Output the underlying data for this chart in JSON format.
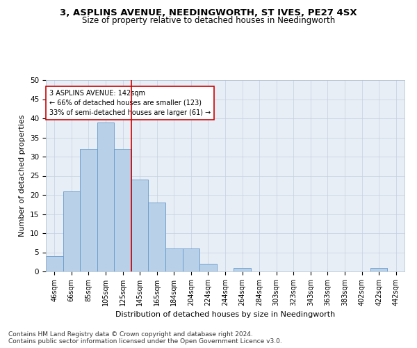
{
  "title": "3, ASPLINS AVENUE, NEEDINGWORTH, ST IVES, PE27 4SX",
  "subtitle": "Size of property relative to detached houses in Needingworth",
  "xlabel": "Distribution of detached houses by size in Needingworth",
  "ylabel": "Number of detached properties",
  "categories": [
    "46sqm",
    "66sqm",
    "85sqm",
    "105sqm",
    "125sqm",
    "145sqm",
    "165sqm",
    "184sqm",
    "204sqm",
    "224sqm",
    "244sqm",
    "264sqm",
    "284sqm",
    "303sqm",
    "323sqm",
    "343sqm",
    "363sqm",
    "383sqm",
    "402sqm",
    "422sqm",
    "442sqm"
  ],
  "values": [
    4,
    21,
    32,
    39,
    32,
    24,
    18,
    6,
    6,
    2,
    0,
    1,
    0,
    0,
    0,
    0,
    0,
    0,
    0,
    1,
    0
  ],
  "bar_color": "#b8d0e8",
  "bar_edge_color": "#6699cc",
  "red_line_index": 4.5,
  "annotation_text": "3 ASPLINS AVENUE: 142sqm\n← 66% of detached houses are smaller (123)\n33% of semi-detached houses are larger (61) →",
  "annotation_box_color": "#ffffff",
  "annotation_box_edge": "#cc0000",
  "ylim": [
    0,
    50
  ],
  "yticks": [
    0,
    5,
    10,
    15,
    20,
    25,
    30,
    35,
    40,
    45,
    50
  ],
  "footnote": "Contains HM Land Registry data © Crown copyright and database right 2024.\nContains public sector information licensed under the Open Government Licence v3.0.",
  "plot_background": "#e8eef5",
  "title_fontsize": 9.5,
  "subtitle_fontsize": 8.5,
  "xlabel_fontsize": 8,
  "ylabel_fontsize": 8,
  "tick_fontsize": 7,
  "annotation_fontsize": 7,
  "footnote_fontsize": 6.5
}
